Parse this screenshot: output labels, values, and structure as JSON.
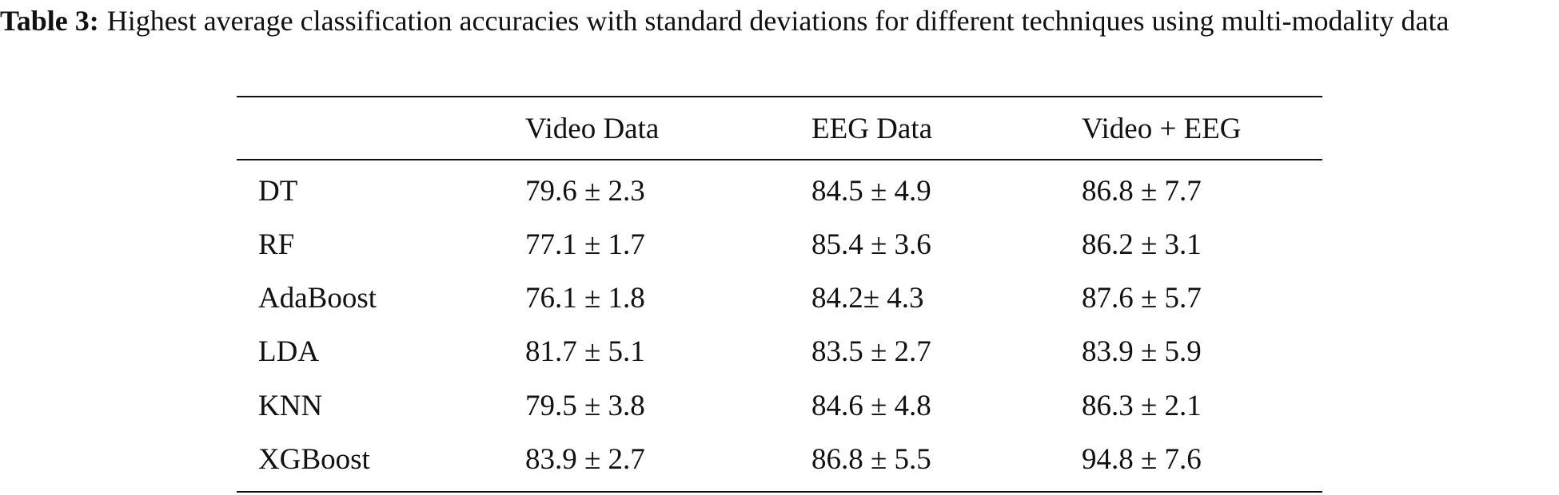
{
  "caption": {
    "label": "Table 3:",
    "text": "Highest average classification accuracies with standard deviations for different techniques using multi-modality data"
  },
  "table": {
    "header": [
      "Video Data",
      "EEG Data",
      "Video + EEG"
    ],
    "rows": [
      [
        "DT",
        "79.6 ± 2.3",
        "84.5 ± 4.9",
        "86.8 ± 7.7"
      ],
      [
        "RF",
        "77.1 ± 1.7",
        "85.4 ± 3.6",
        "86.2 ± 3.1"
      ],
      [
        "AdaBoost",
        "76.1 ± 1.8",
        "84.2± 4.3",
        "87.6 ± 5.7"
      ],
      [
        "LDA",
        "81.7 ± 5.1",
        "83.5 ± 2.7",
        "83.9 ± 5.9"
      ],
      [
        "KNN",
        "79.5 ± 3.8",
        "84.6 ± 4.8",
        "86.3 ± 2.1"
      ],
      [
        "XGBoost",
        "83.9 ± 2.7",
        "86.8 ± 5.5",
        "94.8 ± 7.6"
      ]
    ]
  }
}
